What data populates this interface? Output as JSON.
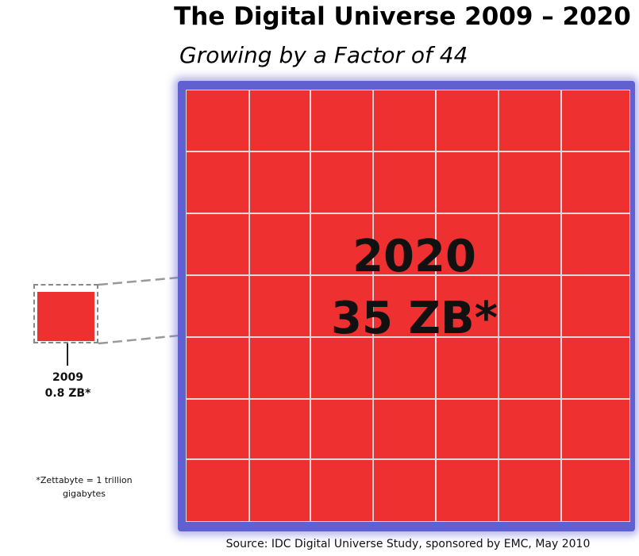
{
  "title": "The Digital Universe 2009 – 2020",
  "subtitle": "Growing by a Factor of 44",
  "big_block": {
    "year": "2020",
    "size": "35 ZB*",
    "color": "#ee3030",
    "border_color": "#6060d0"
  },
  "small_block": {
    "year": "2009",
    "size": "0.8 ZB*",
    "color": "#ee3030"
  },
  "footnote": {
    "line1": "*Zettabyte = 1 trillion",
    "line2": "gigabytes"
  },
  "source": "Source: IDC Digital Universe Study, sponsored by EMC, May 2010"
}
